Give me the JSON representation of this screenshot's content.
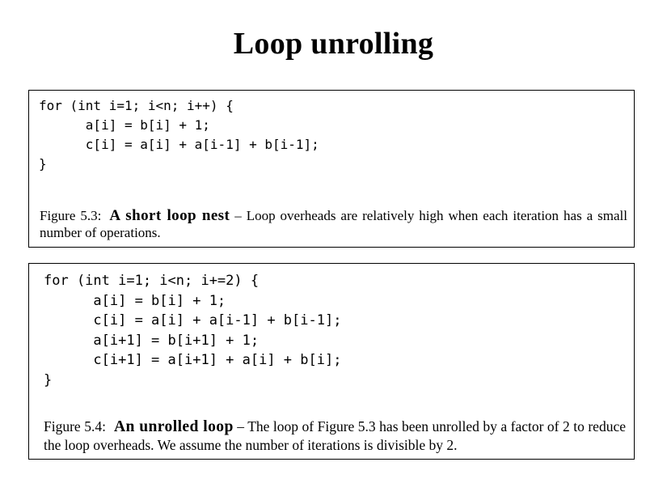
{
  "slide": {
    "title": "Loop unrolling"
  },
  "figures": [
    {
      "code_lines": [
        "for (int i=1; i<n; i++) {",
        "      a[i] = b[i] + 1;",
        "      c[i] = a[i] + a[i-1] + b[i-1];",
        "}",
        ""
      ],
      "caption": {
        "label": "Figure 5.3:",
        "title": "A short loop nest",
        "separator": " – ",
        "text": "Loop overheads are relatively high when each iteration has a small number of operations."
      }
    },
    {
      "code_lines": [
        "for (int i=1; i<n; i+=2) {",
        "      a[i] = b[i] + 1;",
        "      c[i] = a[i] + a[i-1] + b[i-1];",
        "      a[i+1] = b[i+1] + 1;",
        "      c[i+1] = a[i+1] + a[i] + b[i];",
        "}"
      ],
      "caption": {
        "label": "Figure 5.4:",
        "title": "An unrolled loop",
        "separator": " – ",
        "text": "The loop of Figure 5.3 has been unrolled by a factor of 2 to reduce the loop overheads. We assume the number of iterations is divisible by 2."
      }
    }
  ]
}
